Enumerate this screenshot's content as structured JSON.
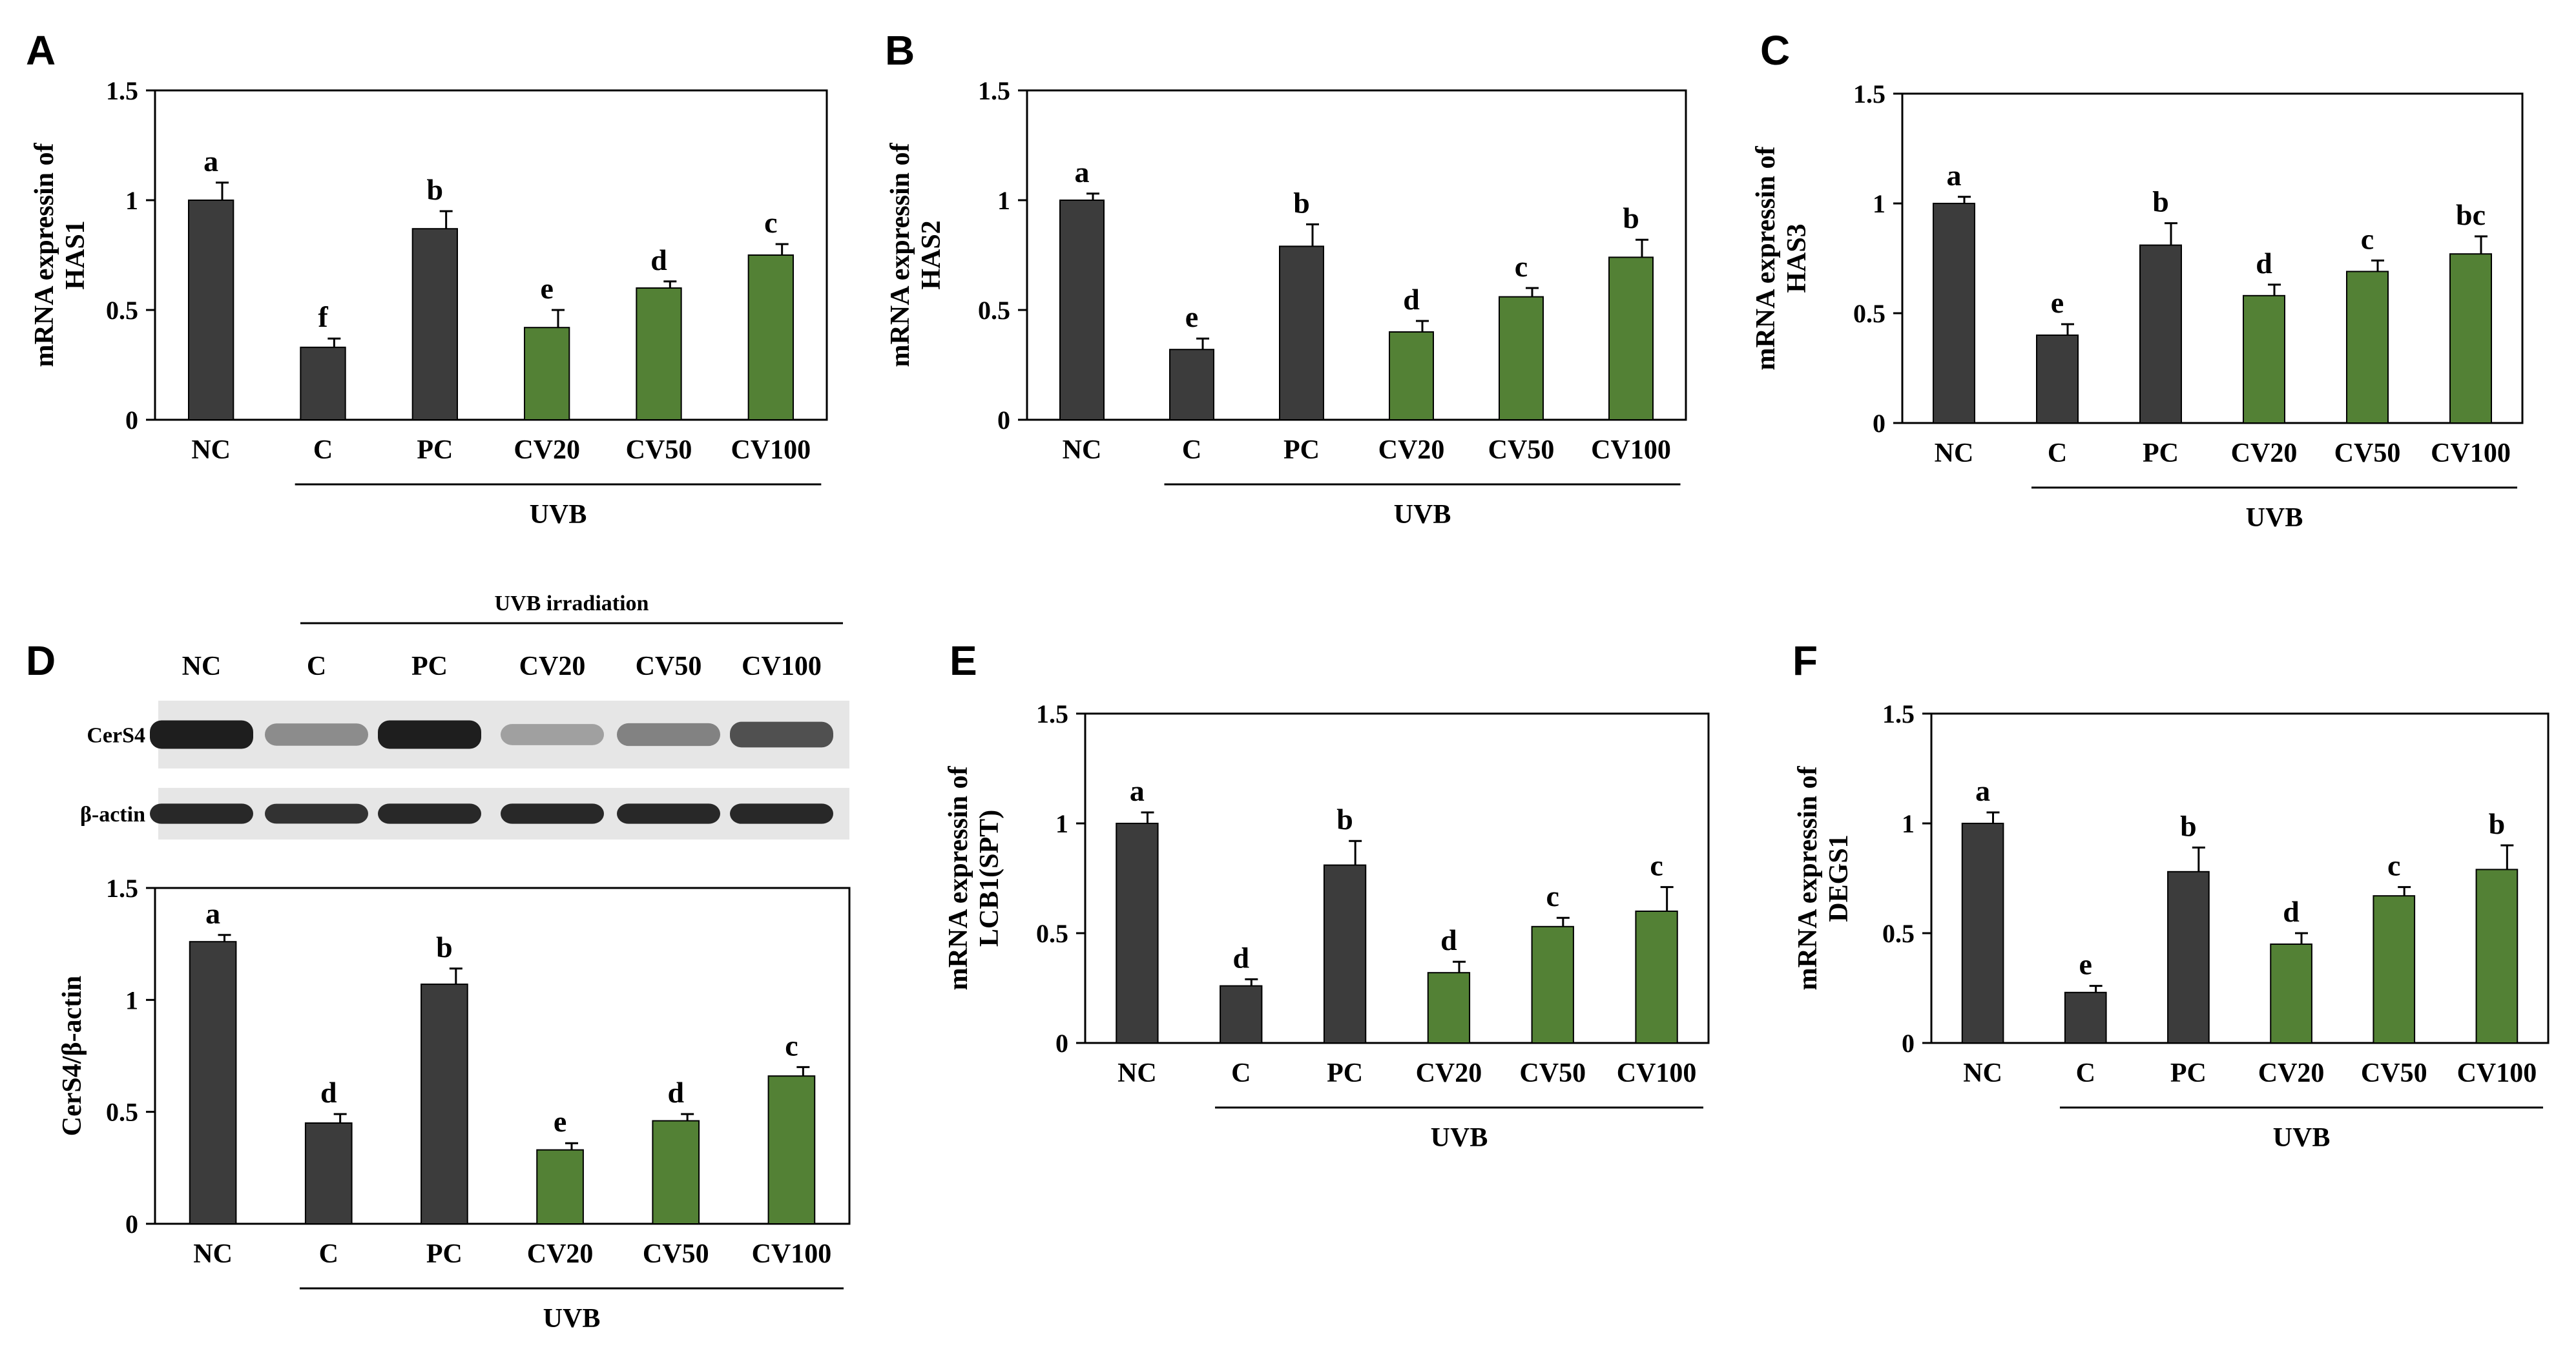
{
  "colors": {
    "uvb_control": "#3c3c3c",
    "extract": "#538135",
    "blot_bg": "#e6e6e6",
    "band": "#1e1e1e"
  },
  "chart_data": [
    {
      "panel": "A",
      "type": "bar",
      "ylabel": "mRNA expressin of HAS1",
      "ylim": [
        0,
        1.5
      ],
      "yticks": [
        0,
        0.5,
        1,
        1.5
      ],
      "ytick_labels": [
        "0",
        "0.5",
        "1",
        "1.5"
      ],
      "categories": [
        "NC",
        "C",
        "PC",
        "CV20",
        "CV50",
        "CV100"
      ],
      "values": [
        1.0,
        0.33,
        0.87,
        0.42,
        0.6,
        0.75
      ],
      "errors": [
        0.08,
        0.04,
        0.08,
        0.08,
        0.03,
        0.05
      ],
      "significance": [
        "a",
        "f",
        "b",
        "e",
        "d",
        "c"
      ],
      "group_label": "UVB",
      "group_categories": [
        "C",
        "PC",
        "CV20",
        "CV50",
        "CV100"
      ]
    },
    {
      "panel": "B",
      "type": "bar",
      "ylabel": "mRNA expressin of HAS2",
      "ylim": [
        0,
        1.5
      ],
      "yticks": [
        0,
        0.5,
        1,
        1.5
      ],
      "ytick_labels": [
        "0",
        "0.5",
        "1",
        "1.5"
      ],
      "categories": [
        "NC",
        "C",
        "PC",
        "CV20",
        "CV50",
        "CV100"
      ],
      "values": [
        1.0,
        0.32,
        0.79,
        0.4,
        0.56,
        0.74
      ],
      "errors": [
        0.03,
        0.05,
        0.1,
        0.05,
        0.04,
        0.08
      ],
      "significance": [
        "a",
        "e",
        "b",
        "d",
        "c",
        "b"
      ],
      "group_label": "UVB",
      "group_categories": [
        "C",
        "PC",
        "CV20",
        "CV50",
        "CV100"
      ]
    },
    {
      "panel": "C",
      "type": "bar",
      "ylabel": "mRNA expressin of HAS3",
      "ylim": [
        0,
        1.5
      ],
      "yticks": [
        0,
        0.5,
        1,
        1.5
      ],
      "ytick_labels": [
        "0",
        "0.5",
        "1",
        "1.5"
      ],
      "categories": [
        "NC",
        "C",
        "PC",
        "CV20",
        "CV50",
        "CV100"
      ],
      "values": [
        1.0,
        0.4,
        0.81,
        0.58,
        0.69,
        0.77
      ],
      "errors": [
        0.03,
        0.05,
        0.1,
        0.05,
        0.05,
        0.08
      ],
      "significance": [
        "a",
        "e",
        "b",
        "d",
        "c",
        "bc"
      ],
      "group_label": "UVB",
      "group_categories": [
        "C",
        "PC",
        "CV20",
        "CV50",
        "CV100"
      ]
    },
    {
      "panel": "D",
      "type": "bar",
      "ylabel": "CerS4/β-actin",
      "ylim": [
        0,
        1.5
      ],
      "yticks": [
        0,
        0.5,
        1,
        1.5
      ],
      "ytick_labels": [
        "0",
        "0.5",
        "1",
        "1.5"
      ],
      "categories": [
        "NC",
        "C",
        "PC",
        "CV20",
        "CV50",
        "CV100"
      ],
      "values": [
        1.26,
        0.45,
        1.07,
        0.33,
        0.46,
        0.66
      ],
      "errors": [
        0.03,
        0.04,
        0.07,
        0.03,
        0.03,
        0.04
      ],
      "significance": [
        "a",
        "d",
        "b",
        "e",
        "d",
        "c"
      ],
      "group_label": "UVB",
      "group_categories": [
        "C",
        "PC",
        "CV20",
        "CV50",
        "CV100"
      ]
    },
    {
      "panel": "E",
      "type": "bar",
      "ylabel": "mRNA expressin of LCB1(SPT)",
      "ylim": [
        0,
        1.5
      ],
      "yticks": [
        0,
        0.5,
        1,
        1.5
      ],
      "ytick_labels": [
        "0",
        "0.5",
        "1",
        "1.5"
      ],
      "categories": [
        "NC",
        "C",
        "PC",
        "CV20",
        "CV50",
        "CV100"
      ],
      "values": [
        1.0,
        0.26,
        0.81,
        0.32,
        0.53,
        0.6
      ],
      "errors": [
        0.05,
        0.03,
        0.11,
        0.05,
        0.04,
        0.11
      ],
      "significance": [
        "a",
        "d",
        "b",
        "d",
        "c",
        "c"
      ],
      "group_label": "UVB",
      "group_categories": [
        "C",
        "PC",
        "CV20",
        "CV50",
        "CV100"
      ]
    },
    {
      "panel": "F",
      "type": "bar",
      "ylabel": "mRNA expressin of DEGS1",
      "ylim": [
        0,
        1.5
      ],
      "yticks": [
        0,
        0.5,
        1,
        1.5
      ],
      "ytick_labels": [
        "0",
        "0.5",
        "1",
        "1.5"
      ],
      "categories": [
        "NC",
        "C",
        "PC",
        "CV20",
        "CV50",
        "CV100"
      ],
      "values": [
        1.0,
        0.23,
        0.78,
        0.45,
        0.67,
        0.79
      ],
      "errors": [
        0.05,
        0.03,
        0.11,
        0.05,
        0.04,
        0.11
      ],
      "significance": [
        "a",
        "e",
        "b",
        "d",
        "c",
        "b"
      ],
      "group_label": "UVB",
      "group_categories": [
        "C",
        "PC",
        "CV20",
        "CV50",
        "CV100"
      ]
    }
  ],
  "western_blot": {
    "panel": "D",
    "header": "UVB irradiation",
    "lanes": [
      "NC",
      "C",
      "PC",
      "CV20",
      "CV50",
      "CV100"
    ],
    "rows": [
      {
        "label": "CerS4",
        "intensity": [
          1.0,
          0.45,
          1.0,
          0.35,
          0.5,
          0.75
        ]
      },
      {
        "label": "β-actin",
        "intensity": [
          0.95,
          0.9,
          0.95,
          0.95,
          0.95,
          0.95
        ]
      }
    ]
  }
}
